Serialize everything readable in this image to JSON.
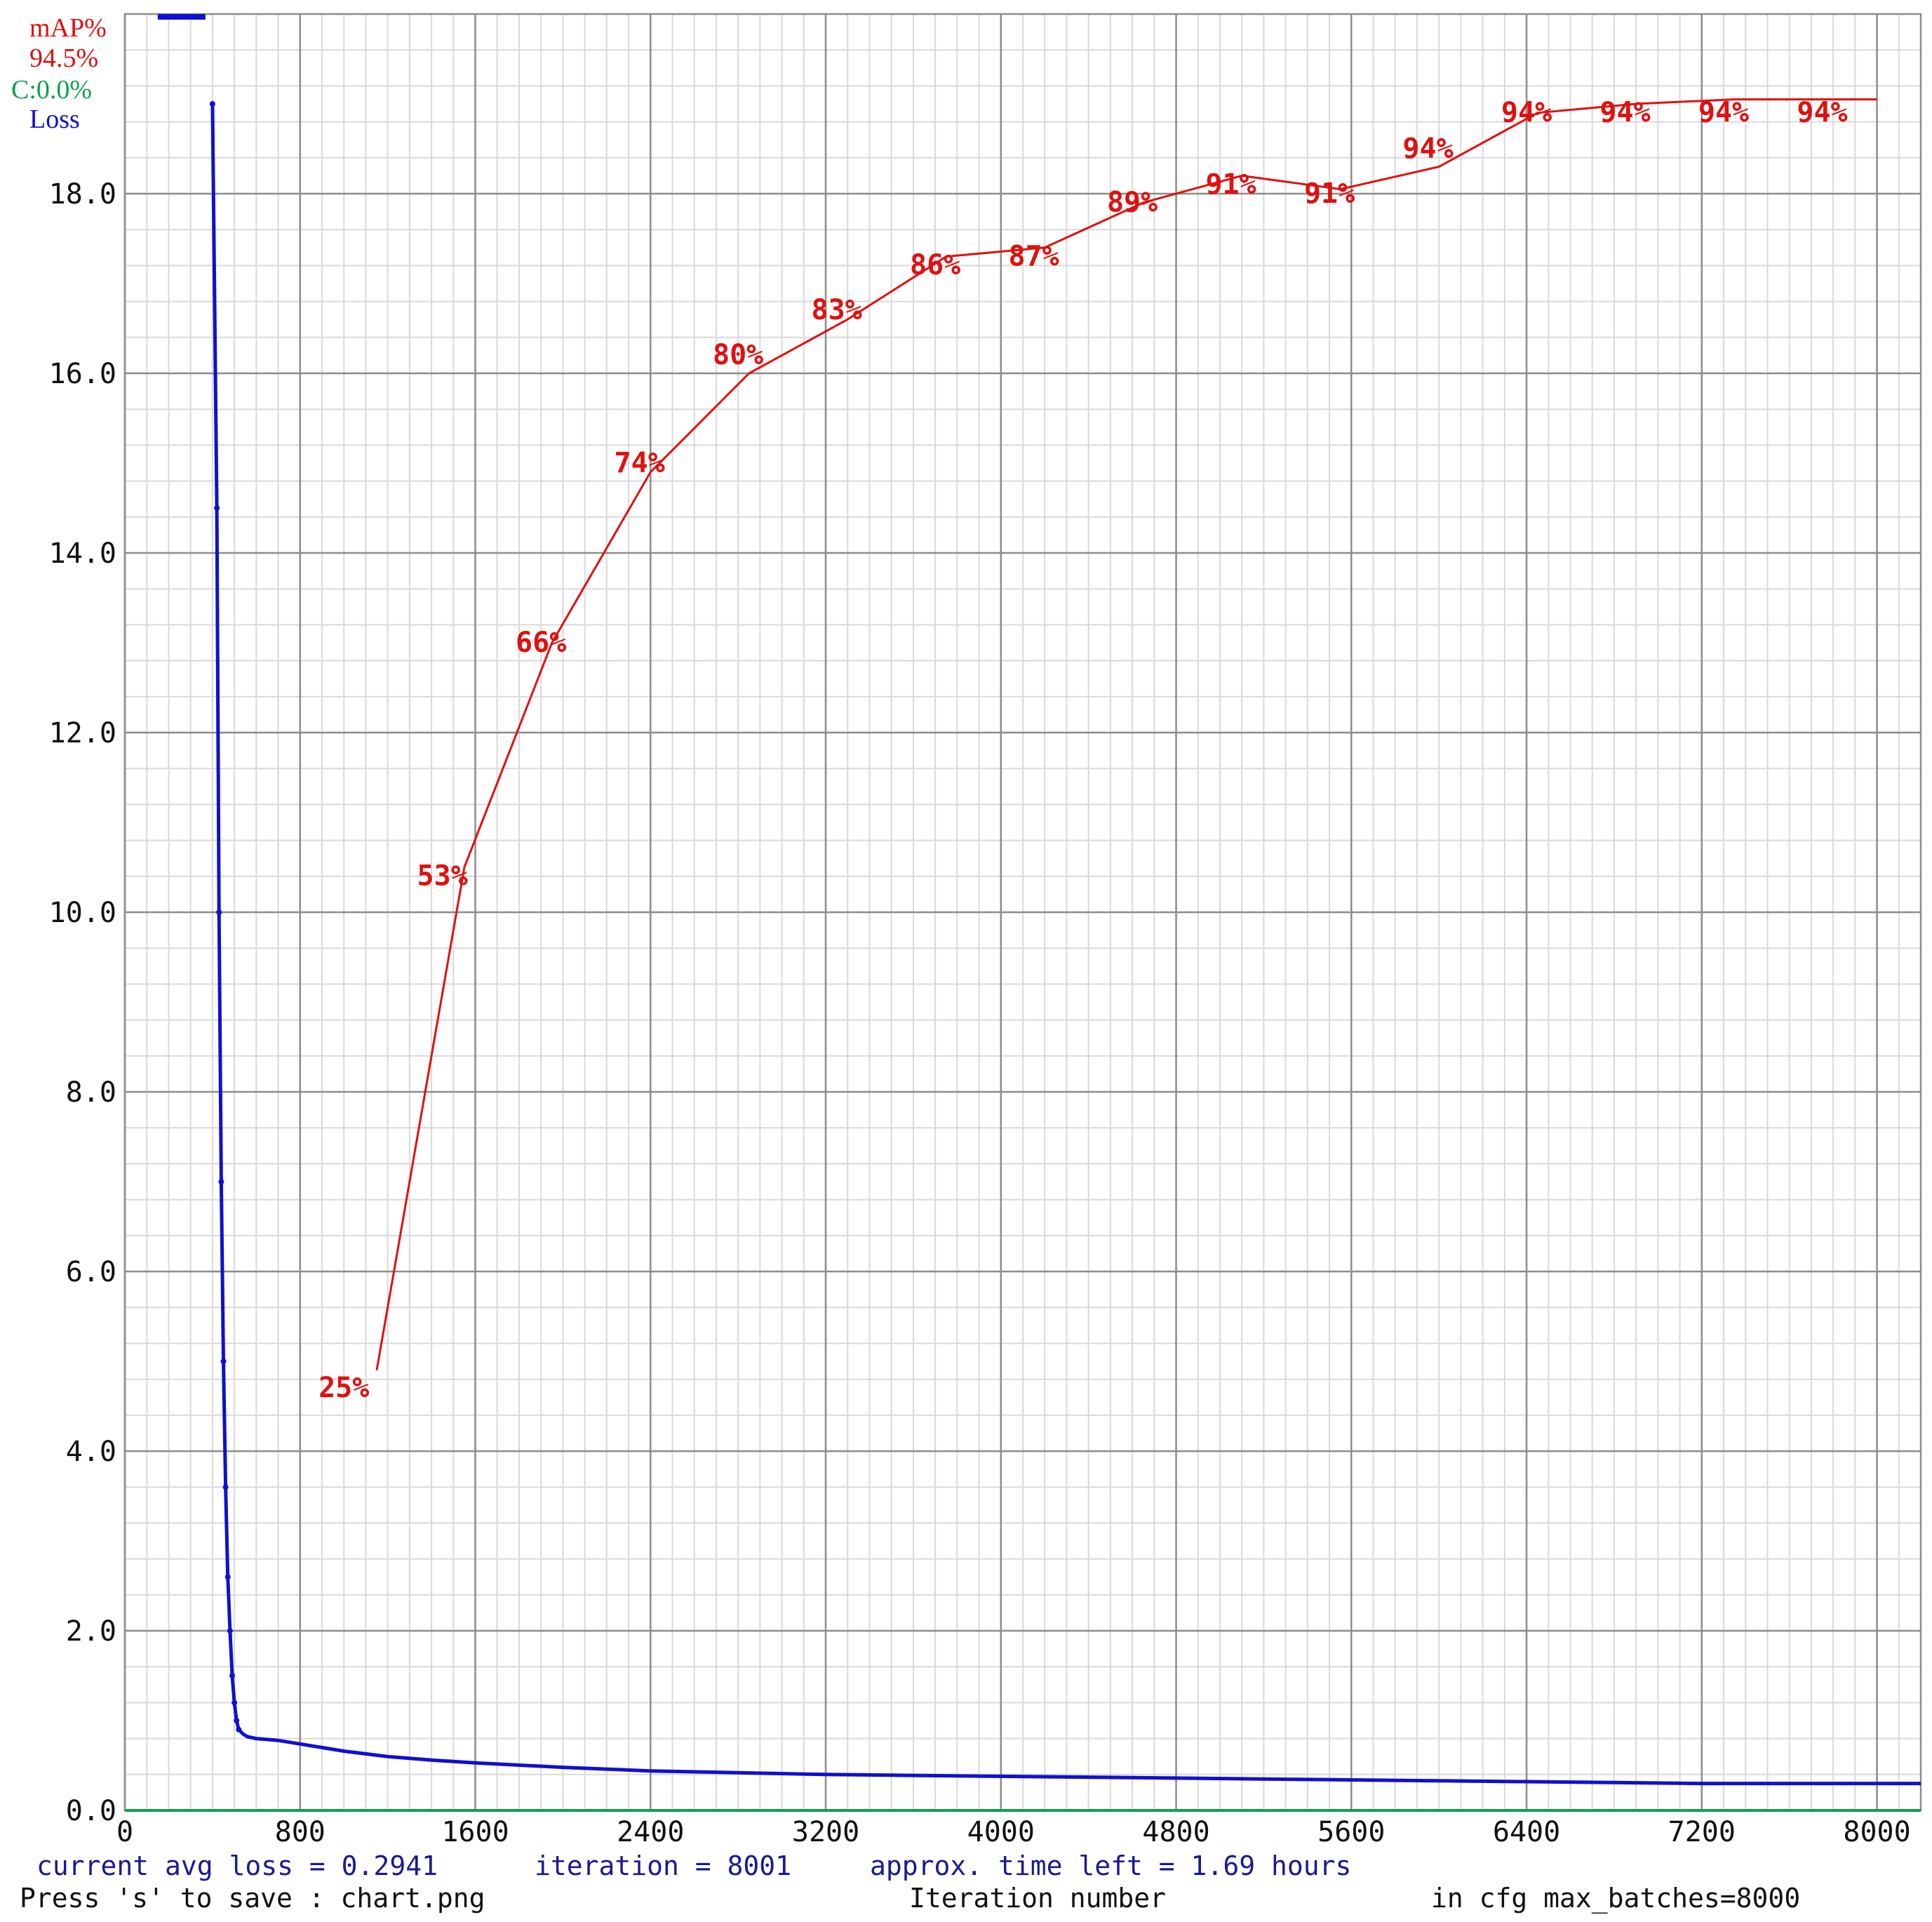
{
  "legend": {
    "map_label": "mAP%",
    "map_value": "94.5%",
    "c_label": "C:0.0%",
    "loss_label": "Loss"
  },
  "colors": {
    "map": "#e01010",
    "loss": "#1010d0",
    "c": "#10a050",
    "grid_major": "#8c8c8c",
    "grid_minor": "#d9d9d9",
    "status_text": "#1a1a90",
    "footer_text": "#111111"
  },
  "status": {
    "avg_loss": "current avg loss = 0.2941",
    "iteration": "iteration = 8001",
    "time_left": "approx. time left = 1.69 hours"
  },
  "footer": {
    "save_hint": "Press 's' to save : chart.png",
    "x_axis_label": "Iteration number",
    "max_batches": "in cfg max_batches=8000"
  },
  "chart_data": {
    "type": "line",
    "title": "",
    "xlabel": "Iteration number",
    "ylabel": "",
    "xlim": [
      0,
      8200
    ],
    "ylim": [
      0,
      20
    ],
    "grid": true,
    "x_ticks": [
      "0",
      "800",
      "1600",
      "2400",
      "3200",
      "4000",
      "4800",
      "5600",
      "6400",
      "7200",
      "8000"
    ],
    "y_ticks": [
      "0.0",
      "2.0",
      "4.0",
      "6.0",
      "8.0",
      "10.0",
      "12.0",
      "14.0",
      "16.0",
      "18.0"
    ],
    "series": [
      {
        "name": "Loss",
        "x": [
          150,
          400,
          420,
          430,
          440,
          450,
          460,
          470,
          480,
          490,
          500,
          510,
          520,
          540,
          560,
          600,
          700,
          800,
          900,
          1000,
          1200,
          1400,
          1600,
          2000,
          2400,
          2800,
          3200,
          3600,
          4000,
          4400,
          4800,
          5200,
          5600,
          6000,
          6400,
          6800,
          7200,
          7600,
          8000,
          8200
        ],
        "y": [
          20.0,
          19.0,
          14.5,
          10.0,
          7.0,
          5.0,
          3.6,
          2.6,
          2.0,
          1.5,
          1.2,
          1.0,
          0.9,
          0.85,
          0.82,
          0.8,
          0.78,
          0.74,
          0.7,
          0.66,
          0.6,
          0.56,
          0.53,
          0.48,
          0.44,
          0.42,
          0.4,
          0.39,
          0.38,
          0.37,
          0.36,
          0.35,
          0.34,
          0.33,
          0.32,
          0.31,
          0.3,
          0.3,
          0.3,
          0.3
        ]
      },
      {
        "name": "mAP%",
        "x": [
          1150,
          1550,
          1950,
          2400,
          2850,
          3300,
          3750,
          4200,
          4650,
          5100,
          5550,
          6000,
          6450,
          6900,
          7350,
          7800,
          8000
        ],
        "y": [
          4.9,
          10.5,
          13.0,
          14.9,
          16.0,
          16.6,
          17.3,
          17.4,
          17.9,
          18.2,
          18.05,
          18.3,
          18.9,
          19.0,
          19.05,
          19.05,
          19.05
        ],
        "labels": [
          "25%",
          "53%",
          "66%",
          "74%",
          "80%",
          "83%",
          "86%",
          "87%",
          "89%",
          "91%",
          "91%",
          "94%",
          "94%",
          "94%",
          "94%",
          "94%"
        ],
        "label_x": [
          1000,
          1450,
          1900,
          2350,
          2800,
          3250,
          3700,
          4150,
          4600,
          5050,
          5500,
          5950,
          6400,
          6850,
          7300,
          7750
        ],
        "label_y": [
          4.6,
          10.3,
          12.9,
          14.9,
          16.1,
          16.6,
          17.1,
          17.2,
          17.8,
          18.0,
          17.9,
          18.4,
          18.8,
          18.8,
          18.8,
          18.8
        ]
      }
    ]
  }
}
